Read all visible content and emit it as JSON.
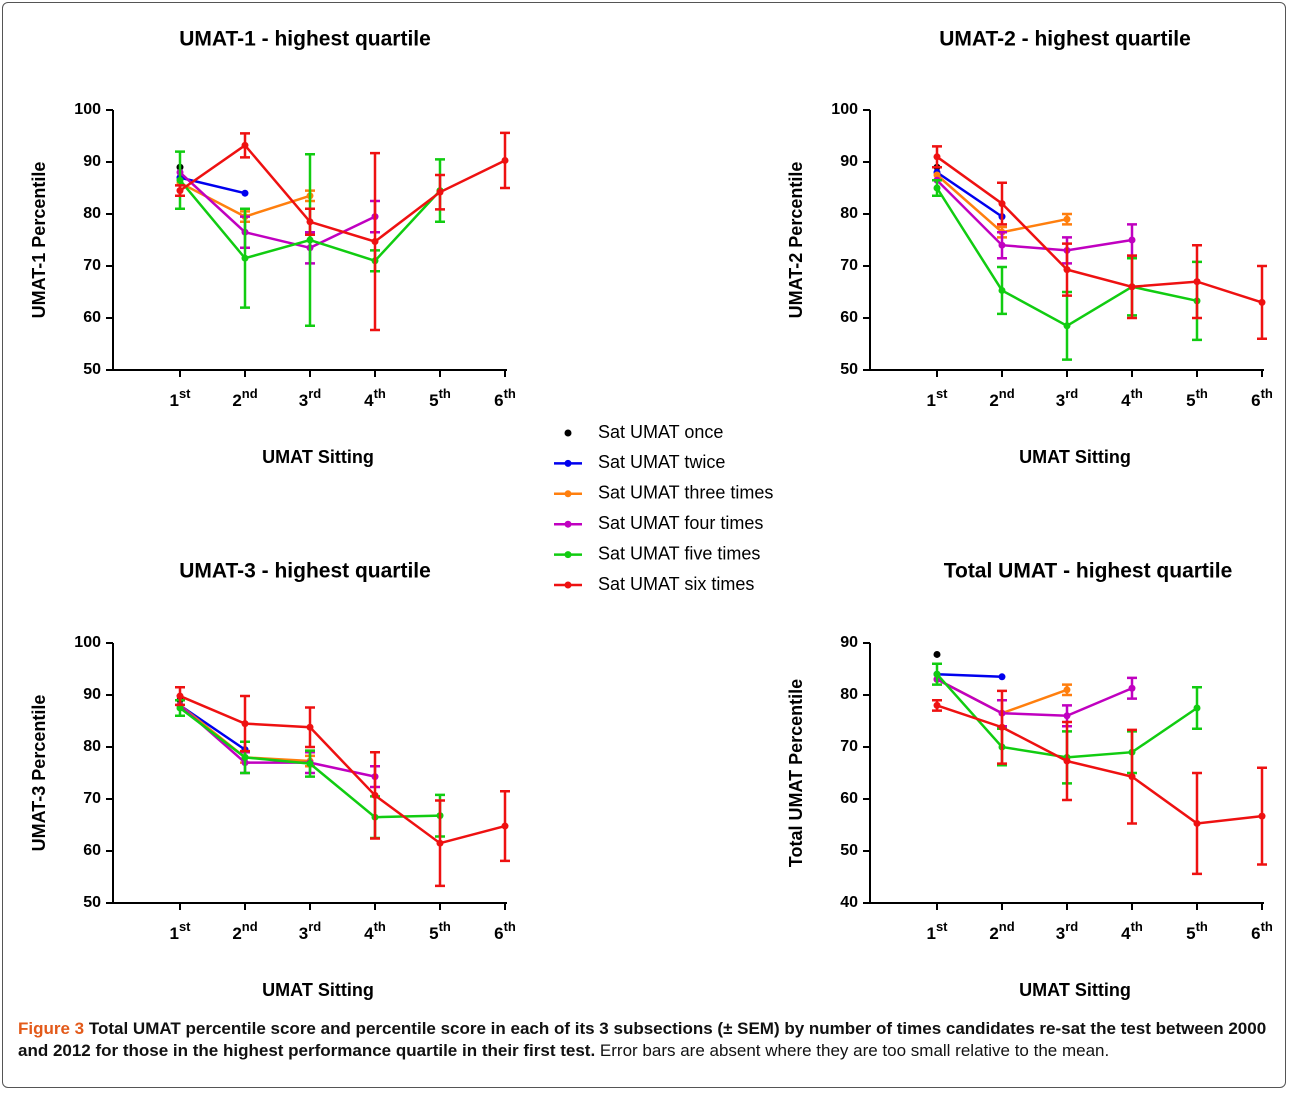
{
  "chart_data": [
    {
      "type": "line",
      "title": "UMAT-1 - highest quartile",
      "x_label": "UMAT Sitting",
      "y_label": "UMAT-1 Percentile",
      "categories": [
        "1st",
        "2nd",
        "3rd",
        "4th",
        "5th",
        "6th"
      ],
      "ylim": [
        50,
        100
      ],
      "yticks": [
        50,
        60,
        70,
        80,
        90,
        100
      ],
      "series": [
        {
          "name": "Sat UMAT once",
          "color": "#000000",
          "values": [
            89,
            null,
            null,
            null,
            null,
            null
          ],
          "errors": [
            null,
            null,
            null,
            null,
            null,
            null
          ]
        },
        {
          "name": "Sat UMAT twice",
          "color": "#0000ee",
          "values": [
            87,
            84,
            null,
            null,
            null,
            null
          ],
          "errors": [
            null,
            null,
            null,
            null,
            null,
            null
          ]
        },
        {
          "name": "Sat UMAT three times",
          "color": "#ff7f0e",
          "values": [
            86,
            79.5,
            83.5,
            null,
            null,
            null
          ],
          "errors": [
            null,
            1,
            1,
            null,
            null,
            null
          ]
        },
        {
          "name": "Sat UMAT four times",
          "color": "#c000c0",
          "values": [
            88,
            76.5,
            73.5,
            79.5,
            null,
            null
          ],
          "errors": [
            null,
            3,
            3,
            3,
            null,
            null
          ]
        },
        {
          "name": "Sat UMAT five times",
          "color": "#11cc11",
          "values": [
            86.5,
            71.5,
            75,
            71,
            84.5,
            null
          ],
          "errors": [
            5.5,
            9.5,
            16.5,
            2,
            6,
            null
          ]
        },
        {
          "name": "Sat UMAT six times",
          "color": "#ee1111",
          "values": [
            84.5,
            93.2,
            78.5,
            74.7,
            84.2,
            90.3
          ],
          "errors": [
            1,
            2.3,
            2.5,
            17,
            3.3,
            5.3
          ]
        }
      ]
    },
    {
      "type": "line",
      "title": "UMAT-2 - highest quartile",
      "x_label": "UMAT Sitting",
      "y_label": "UMAT-2 Percentile",
      "categories": [
        "1st",
        "2nd",
        "3rd",
        "4th",
        "5th",
        "6th"
      ],
      "ylim": [
        50,
        100
      ],
      "yticks": [
        50,
        60,
        70,
        80,
        90,
        100
      ],
      "series": [
        {
          "color": "#000000",
          "values": [
            89,
            null,
            null,
            null,
            null,
            null
          ],
          "errors": [
            null,
            null,
            null,
            null,
            null,
            null
          ]
        },
        {
          "color": "#0000ee",
          "values": [
            88,
            79.5,
            null,
            null,
            null,
            null
          ],
          "errors": [
            null,
            null,
            null,
            null,
            null,
            null
          ]
        },
        {
          "color": "#ff7f0e",
          "values": [
            87.5,
            76.5,
            79,
            null,
            null,
            null
          ],
          "errors": [
            null,
            1,
            1,
            null,
            null,
            null
          ]
        },
        {
          "color": "#c000c0",
          "values": [
            86.5,
            74,
            73,
            75,
            null,
            null
          ],
          "errors": [
            null,
            2.5,
            2.5,
            3,
            null,
            null
          ]
        },
        {
          "color": "#11cc11",
          "values": [
            85,
            65.3,
            58.5,
            66,
            63.3,
            null
          ],
          "errors": [
            1.5,
            4.5,
            6.5,
            5.5,
            7.5,
            null
          ]
        },
        {
          "color": "#ee1111",
          "values": [
            91,
            82,
            69.3,
            66,
            67,
            63
          ],
          "errors": [
            2,
            4,
            5,
            6,
            7,
            7
          ]
        }
      ]
    },
    {
      "type": "line",
      "title": "UMAT-3 - highest quartile",
      "x_label": "UMAT Sitting",
      "y_label": "UMAT-3 Percentile",
      "categories": [
        "1st",
        "2nd",
        "3rd",
        "4th",
        "5th",
        "6th"
      ],
      "ylim": [
        50,
        100
      ],
      "yticks": [
        50,
        60,
        70,
        80,
        90,
        100
      ],
      "series": [
        {
          "color": "#000000",
          "values": [
            89,
            null,
            null,
            null,
            null,
            null
          ],
          "errors": [
            null,
            null,
            null,
            null,
            null,
            null
          ]
        },
        {
          "color": "#0000ee",
          "values": [
            88,
            79.5,
            null,
            null,
            null,
            null
          ],
          "errors": [
            null,
            null,
            null,
            null,
            null,
            null
          ]
        },
        {
          "color": "#ff7f0e",
          "values": [
            88,
            78,
            77.3,
            null,
            null,
            null
          ],
          "errors": [
            null,
            1,
            1,
            null,
            null,
            null
          ]
        },
        {
          "color": "#c000c0",
          "values": [
            88,
            77,
            77,
            74.3,
            null,
            null
          ],
          "errors": [
            null,
            2,
            2,
            2,
            null,
            null
          ]
        },
        {
          "color": "#11cc11",
          "values": [
            87.5,
            78,
            76.8,
            66.5,
            66.8,
            null
          ],
          "errors": [
            1.5,
            3,
            2.5,
            4,
            4,
            null
          ]
        },
        {
          "color": "#ee1111",
          "values": [
            89.8,
            84.5,
            83.8,
            70.7,
            61.5,
            64.8
          ],
          "errors": [
            1.7,
            5.3,
            3.8,
            8.3,
            8.2,
            6.7
          ]
        }
      ]
    },
    {
      "type": "line",
      "title": "Total UMAT - highest quartile",
      "x_label": "UMAT Sitting",
      "y_label": "Total UMAT Percentile",
      "categories": [
        "1st",
        "2nd",
        "3rd",
        "4th",
        "5th",
        "6th"
      ],
      "ylim": [
        40,
        90
      ],
      "yticks": [
        40,
        50,
        60,
        70,
        80,
        90
      ],
      "series": [
        {
          "color": "#000000",
          "values": [
            87.8,
            null,
            null,
            null,
            null,
            null
          ],
          "errors": [
            null,
            null,
            null,
            null,
            null,
            null
          ]
        },
        {
          "color": "#0000ee",
          "values": [
            84,
            83.5,
            null,
            null,
            null,
            null
          ],
          "errors": [
            null,
            null,
            null,
            null,
            null,
            null
          ]
        },
        {
          "color": "#ff7f0e",
          "values": [
            83,
            76.5,
            81,
            null,
            null,
            null
          ],
          "errors": [
            null,
            null,
            1,
            null,
            null,
            null
          ]
        },
        {
          "color": "#c000c0",
          "values": [
            83,
            76.5,
            76,
            81.3,
            null,
            null
          ],
          "errors": [
            null,
            2.5,
            2,
            2,
            null,
            null
          ]
        },
        {
          "color": "#11cc11",
          "values": [
            84,
            70,
            68,
            69,
            77.5,
            null
          ],
          "errors": [
            2,
            3.5,
            5,
            4,
            4,
            null
          ]
        },
        {
          "color": "#ee1111",
          "values": [
            78,
            73.8,
            67.3,
            64.3,
            55.3,
            56.7
          ],
          "errors": [
            1,
            7,
            7.5,
            9,
            9.7,
            9.3
          ]
        }
      ]
    }
  ],
  "caption": {
    "label": "Figure 3",
    "title": "Total UMAT percentile score and percentile score in each of its 3 subsections (± SEM) by number of times candidates re-sat the test between 2000 and 2012 for those in the highest performance quartile in their first test.",
    "note": "Error bars are absent where they are too small relative to the mean."
  }
}
